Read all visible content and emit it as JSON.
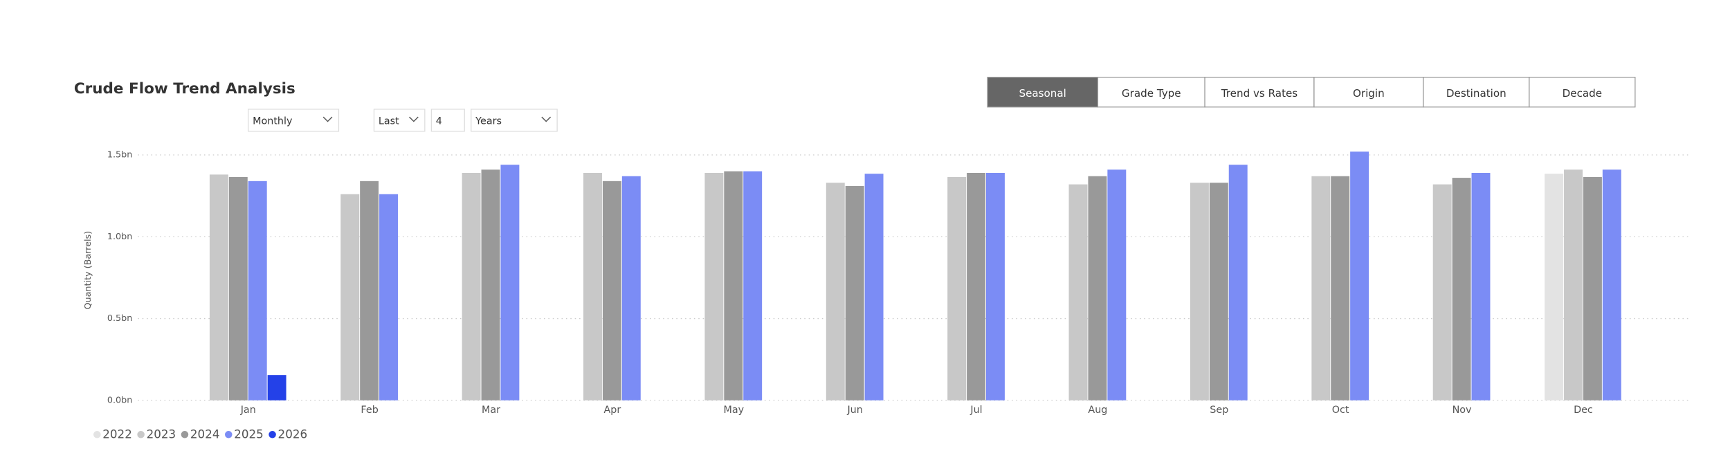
{
  "title": "Crude Flow Trend Analysis",
  "buttons": [
    "Seasonal",
    "Grade Type",
    "Trend vs Rates",
    "Origin",
    "Destination",
    "Decade"
  ],
  "active_button": 0,
  "filters": [
    "Monthly",
    "Last",
    "4",
    "Years"
  ],
  "chart_data": {
    "type": "bar",
    "y_label": "Quantity (Barrels)",
    "categories": [
      "Jan",
      "Feb",
      "Mar",
      "Apr",
      "May",
      "Jun",
      "Jul",
      "Aug",
      "Sep",
      "Oct",
      "Nov",
      "Dec"
    ],
    "series": [
      {
        "name": "2022",
        "color": "#e3e3e3",
        "values": [
          null,
          null,
          null,
          null,
          null,
          null,
          null,
          null,
          null,
          null,
          null,
          1.385
        ]
      },
      {
        "name": "2023",
        "color": "#c8c8c8",
        "values": [
          1.38,
          1.26,
          1.39,
          1.39,
          1.39,
          1.33,
          1.365,
          1.32,
          1.33,
          1.37,
          1.32,
          1.41
        ]
      },
      {
        "name": "2024",
        "color": "#999999",
        "values": [
          1.365,
          1.34,
          1.41,
          1.34,
          1.4,
          1.31,
          1.39,
          1.37,
          1.33,
          1.37,
          1.36,
          1.365
        ]
      },
      {
        "name": "2025",
        "color": "#7b8cf5",
        "values": [
          1.34,
          1.26,
          1.44,
          1.37,
          1.4,
          1.385,
          1.39,
          1.41,
          1.44,
          1.52,
          1.39,
          1.41
        ]
      },
      {
        "name": "2026",
        "color": "#2441e8",
        "values": [
          0.155,
          null,
          null,
          null,
          null,
          null,
          null,
          null,
          null,
          null,
          null,
          null
        ]
      }
    ],
    "ylim": [
      0,
      1.55
    ],
    "yticks": [
      {
        "value": 0,
        "label": "0.0bn"
      },
      {
        "value": 0.5,
        "label": "0.5bn"
      },
      {
        "value": 1,
        "label": "1.0bn"
      },
      {
        "value": 1.5,
        "label": "1.5bn"
      }
    ],
    "grid": true
  }
}
